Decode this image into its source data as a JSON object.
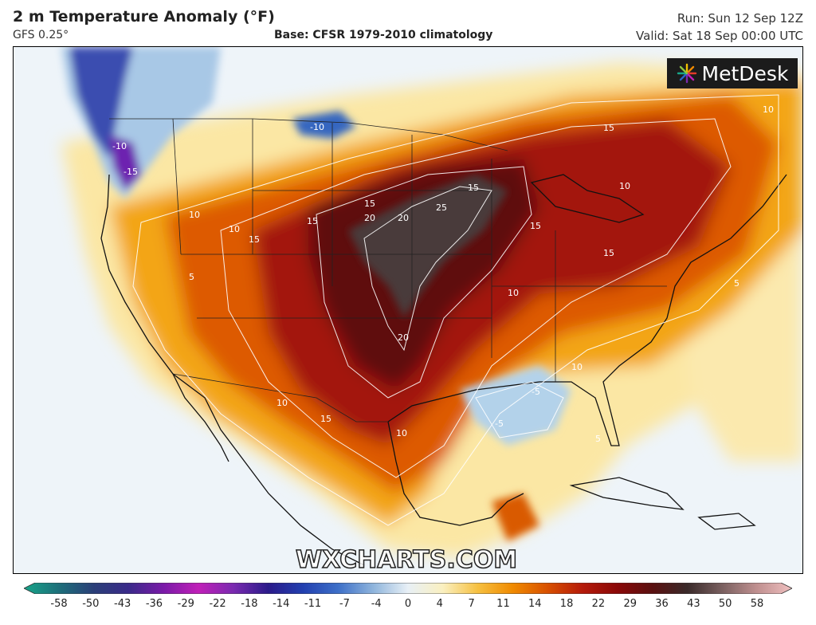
{
  "header": {
    "title": "2 m Temperature Anomaly (°F)",
    "model": "GFS 0.25°",
    "base": "Base: CFSR 1979-2010 climatology",
    "run": "Run: Sun 12 Sep 12Z",
    "valid": "Valid: Sat 18 Sep 00:00 UTC"
  },
  "logo": {
    "text": "MetDesk",
    "icon": "metdesk-star-icon"
  },
  "watermark": "WXCHARTS.COM",
  "colors": {
    "anomaly_max": "#3b2b2b",
    "anomaly_hot": "#8b0a0a",
    "anomaly_warm": "#d94800",
    "anomaly_mild": "#f2a400",
    "anomaly_slight": "#fbe6a0",
    "anomaly_neutral": "#eaf2f8",
    "anomaly_cool": "#a9c9e6",
    "anomaly_cold": "#2f3fa8",
    "anomaly_coldest": "#6a1ea8"
  },
  "contour_labels": [
    {
      "text": "20"
    },
    {
      "text": "20"
    },
    {
      "text": "25"
    },
    {
      "text": "20"
    },
    {
      "text": "15"
    },
    {
      "text": "15"
    },
    {
      "text": "15"
    },
    {
      "text": "15"
    },
    {
      "text": "15"
    },
    {
      "text": "15"
    },
    {
      "text": "15"
    },
    {
      "text": "15"
    },
    {
      "text": "10"
    },
    {
      "text": "10"
    },
    {
      "text": "10"
    },
    {
      "text": "10"
    },
    {
      "text": "10"
    },
    {
      "text": "10"
    },
    {
      "text": "10"
    },
    {
      "text": "10"
    },
    {
      "text": "5"
    },
    {
      "text": "5"
    },
    {
      "text": "5"
    },
    {
      "text": "-5"
    },
    {
      "text": "-5"
    },
    {
      "text": "-10"
    },
    {
      "text": "-10"
    },
    {
      "text": "-15"
    }
  ],
  "color_scale": {
    "ticks": [
      "-58",
      "-50",
      "-43",
      "-36",
      "-29",
      "-22",
      "-18",
      "-14",
      "-11",
      "-7",
      "-4",
      "0",
      "4",
      "7",
      "11",
      "14",
      "18",
      "22",
      "29",
      "36",
      "43",
      "50",
      "58"
    ],
    "colors": [
      "#17a589",
      "#1d6f7a",
      "#2a3f78",
      "#3a2a8a",
      "#7a1aa8",
      "#c01fb8",
      "#7a2ab0",
      "#2a1a8a",
      "#2240b0",
      "#3d6fc8",
      "#8eb4dc",
      "#e8f0f6",
      "#faf0c0",
      "#f6c040",
      "#f08a00",
      "#d85000",
      "#b51a0a",
      "#8a0808",
      "#5a1010",
      "#3a2a2a",
      "#7a6060",
      "#c09090",
      "#f0c0c0"
    ]
  }
}
